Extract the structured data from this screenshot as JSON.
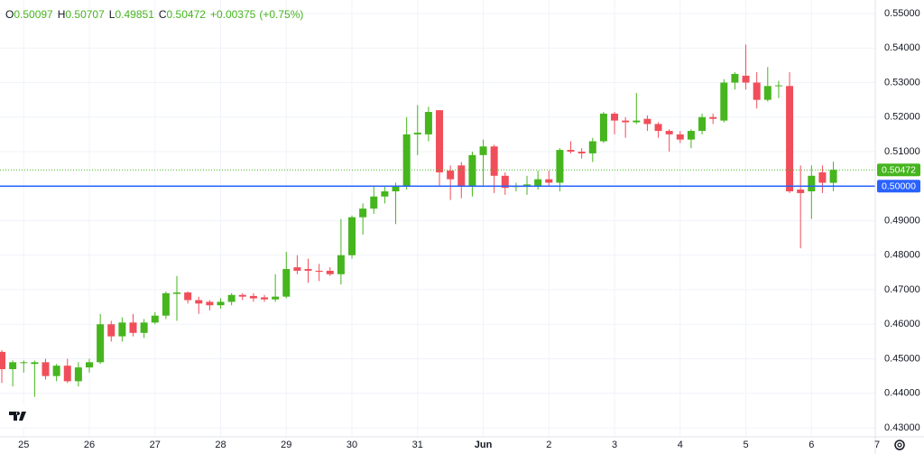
{
  "chart_data": {
    "type": "candlestick",
    "header": {
      "labels": [
        "O",
        "H",
        "L",
        "C"
      ],
      "change": "+0.00375",
      "change_percent": "(+0.75%)"
    },
    "open": [
      0.452,
      0.447,
      0.4488,
      0.4485,
      0.449,
      0.445,
      0.448,
      0.4435,
      0.4475,
      0.449,
      0.46,
      0.4565,
      0.4605,
      0.4575,
      0.4605,
      0.4625,
      0.4688,
      0.4692,
      0.467,
      0.4665,
      0.4655,
      0.4665,
      0.4685,
      0.4682,
      0.4678,
      0.4672,
      0.468,
      0.4765,
      0.476,
      0.4755,
      0.4755,
      0.4745,
      0.48,
      0.491,
      0.4935,
      0.497,
      0.4985,
      0.5,
      0.515,
      0.515,
      0.522,
      0.5045,
      0.506,
      0.5,
      0.509,
      0.5115,
      0.503,
      0.4998,
      0.5,
      0.5,
      0.502,
      0.501,
      0.5105,
      0.51,
      0.5095,
      0.513,
      0.521,
      0.519,
      0.5185,
      0.5195,
      0.518,
      0.516,
      0.515,
      0.5135,
      0.516,
      0.52,
      0.519,
      0.53,
      0.532,
      0.53,
      0.525,
      0.529,
      0.529,
      0.499,
      0.4985,
      0.504,
      0.50097
    ],
    "high": [
      0.4525,
      0.4495,
      0.4495,
      0.4495,
      0.45,
      0.4485,
      0.45,
      0.449,
      0.45,
      0.463,
      0.461,
      0.462,
      0.463,
      0.4615,
      0.4635,
      0.4695,
      0.474,
      0.4695,
      0.468,
      0.467,
      0.4675,
      0.469,
      0.469,
      0.469,
      0.4685,
      0.4745,
      0.481,
      0.48,
      0.479,
      0.4775,
      0.4765,
      0.4905,
      0.4915,
      0.495,
      0.5,
      0.5,
      0.501,
      0.52,
      0.5235,
      0.523,
      0.522,
      0.506,
      0.507,
      0.51,
      0.5135,
      0.512,
      0.504,
      0.501,
      0.503,
      0.5045,
      0.5045,
      0.511,
      0.513,
      0.511,
      0.514,
      0.5215,
      0.5215,
      0.52,
      0.527,
      0.5205,
      0.5185,
      0.5165,
      0.516,
      0.5165,
      0.521,
      0.521,
      0.531,
      0.533,
      0.541,
      0.533,
      0.5345,
      0.5305,
      0.533,
      0.506,
      0.506,
      0.506,
      0.50707
    ],
    "low": [
      0.443,
      0.442,
      0.446,
      0.439,
      0.444,
      0.4435,
      0.443,
      0.442,
      0.446,
      0.4485,
      0.455,
      0.455,
      0.4565,
      0.456,
      0.46,
      0.4615,
      0.461,
      0.466,
      0.463,
      0.464,
      0.4645,
      0.4655,
      0.467,
      0.4665,
      0.4665,
      0.4665,
      0.4675,
      0.4745,
      0.472,
      0.4725,
      0.474,
      0.4715,
      0.479,
      0.486,
      0.492,
      0.495,
      0.489,
      0.499,
      0.509,
      0.513,
      0.5,
      0.496,
      0.4965,
      0.497,
      0.5,
      0.498,
      0.4975,
      0.4985,
      0.4975,
      0.499,
      0.5,
      0.4985,
      0.5095,
      0.508,
      0.507,
      0.5125,
      0.515,
      0.514,
      0.518,
      0.516,
      0.514,
      0.51,
      0.5125,
      0.511,
      0.515,
      0.518,
      0.5185,
      0.528,
      0.528,
      0.5225,
      0.5245,
      0.5255,
      0.498,
      0.482,
      0.4905,
      0.498,
      0.49851
    ],
    "close": [
      0.447,
      0.449,
      0.449,
      0.449,
      0.445,
      0.448,
      0.4435,
      0.4475,
      0.449,
      0.46,
      0.4565,
      0.4605,
      0.4575,
      0.4605,
      0.4625,
      0.469,
      0.4692,
      0.467,
      0.466,
      0.4655,
      0.4665,
      0.4685,
      0.468,
      0.4675,
      0.4672,
      0.468,
      0.476,
      0.4755,
      0.4755,
      0.4752,
      0.4745,
      0.48,
      0.491,
      0.4935,
      0.497,
      0.4985,
      0.5,
      0.515,
      0.5155,
      0.5215,
      0.504,
      0.502,
      0.5,
      0.509,
      0.5115,
      0.503,
      0.4995,
      0.5,
      0.5005,
      0.502,
      0.501,
      0.5105,
      0.51,
      0.5095,
      0.513,
      0.521,
      0.519,
      0.5185,
      0.519,
      0.518,
      0.516,
      0.515,
      0.5135,
      0.516,
      0.52,
      0.5195,
      0.53,
      0.5325,
      0.53,
      0.525,
      0.529,
      0.5292,
      0.4985,
      0.498,
      0.503,
      0.501,
      0.50472
    ],
    "up_color": "#46b51e",
    "down_color": "#f04e5a",
    "xlim": [
      -0.165,
      79.83
    ],
    "xticks": [
      {
        "value": 2,
        "label": "25"
      },
      {
        "value": 8,
        "label": "26"
      },
      {
        "value": 14,
        "label": "27"
      },
      {
        "value": 20,
        "label": "28"
      },
      {
        "value": 26,
        "label": "29"
      },
      {
        "value": 32,
        "label": "30"
      },
      {
        "value": 38,
        "label": "31"
      },
      {
        "value": 44,
        "label": "Jun"
      },
      {
        "value": 50,
        "label": "2"
      },
      {
        "value": 56,
        "label": "3"
      },
      {
        "value": 62,
        "label": "4"
      },
      {
        "value": 68,
        "label": "5"
      },
      {
        "value": 74,
        "label": "6"
      },
      {
        "value": 80,
        "label": "7"
      }
    ],
    "ylim": [
      0.42739,
      0.55392
    ],
    "yticks": [
      {
        "value": 0.43,
        "label": "0.43000"
      },
      {
        "value": 0.44,
        "label": "0.44000"
      },
      {
        "value": 0.45,
        "label": "0.45000"
      },
      {
        "value": 0.46,
        "label": "0.46000"
      },
      {
        "value": 0.47,
        "label": "0.47000"
      },
      {
        "value": 0.48,
        "label": "0.48000"
      },
      {
        "value": 0.49,
        "label": "0.49000"
      },
      {
        "value": 0.5,
        "label": "0.50000"
      },
      {
        "value": 0.51,
        "label": "0.51000"
      },
      {
        "value": 0.52,
        "label": "0.52000"
      },
      {
        "value": 0.53,
        "label": "0.53000"
      },
      {
        "value": 0.54,
        "label": "0.54000"
      },
      {
        "value": 0.55,
        "label": "0.55000"
      }
    ],
    "grid": true,
    "price_lines": [
      {
        "value": 0.50472,
        "label": "0.50472",
        "color": "#46b51e",
        "style": "dotted"
      },
      {
        "value": 0.5,
        "label": "0.50000",
        "color": "#2962ff",
        "style": "solid"
      }
    ]
  }
}
